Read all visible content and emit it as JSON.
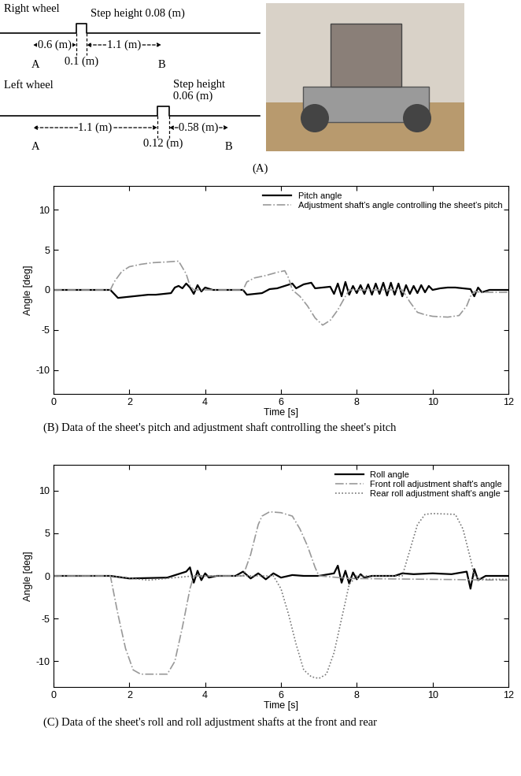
{
  "diagram": {
    "panel_label": "(A)",
    "right_wheel": {
      "label": "Right wheel",
      "step_height": [
        "Step height 0.08 (m)"
      ],
      "before_step": "0.6 (m)",
      "step_width": "0.1 (m)",
      "after_step": "1.1 (m)",
      "start": "A",
      "end": "B"
    },
    "left_wheel": {
      "label": "Left wheel",
      "step_height": [
        "Step height",
        "0.06 (m)"
      ],
      "before_step": "1.1 (m)",
      "step_width": "0.12 (m)",
      "after_step": "0.58 (m)",
      "start": "A",
      "end": "B"
    }
  },
  "chart_data": [
    {
      "type": "line",
      "title": "(B) Data of the sheet's pitch and adjustment shaft controlling the sheet's pitch",
      "x_label": "Time [s]",
      "y_label": "Angle [deg]",
      "xlim": [
        0,
        12
      ],
      "ylim": [
        -13,
        13
      ],
      "xticks": [
        0,
        2,
        4,
        6,
        8,
        10,
        12
      ],
      "yticks": [
        -10,
        -5,
        0,
        5,
        10
      ],
      "legend": "upper right",
      "series": [
        {
          "name": "Pitch angle",
          "color": "#000000",
          "line_style": "solid",
          "x": [
            0,
            1.5,
            1.6,
            1.7,
            1.9,
            2.1,
            2.3,
            2.5,
            2.7,
            2.9,
            3.1,
            3.2,
            3.3,
            3.4,
            3.5,
            3.6,
            3.7,
            3.8,
            3.9,
            4.0,
            4.2,
            5.0,
            5.1,
            5.3,
            5.5,
            5.7,
            5.9,
            6.1,
            6.3,
            6.4,
            6.6,
            6.8,
            6.9,
            7.1,
            7.3,
            7.4,
            7.5,
            7.6,
            7.7,
            7.8,
            7.9,
            8.0,
            8.1,
            8.2,
            8.3,
            8.4,
            8.5,
            8.6,
            8.7,
            8.8,
            8.9,
            9.0,
            9.1,
            9.2,
            9.3,
            9.4,
            9.5,
            9.6,
            9.7,
            9.8,
            9.9,
            10.0,
            10.2,
            10.4,
            10.6,
            10.8,
            11.0,
            11.1,
            11.2,
            11.3,
            11.5,
            12
          ],
          "values": [
            0,
            0,
            -0.5,
            -1.0,
            -0.9,
            -0.8,
            -0.7,
            -0.6,
            -0.6,
            -0.5,
            -0.4,
            0.3,
            0.5,
            0.2,
            0.8,
            0.3,
            -0.5,
            0.6,
            -0.2,
            0.3,
            0,
            0,
            -0.6,
            -0.5,
            -0.4,
            0.1,
            0.2,
            0.5,
            0.8,
            0.2,
            0.7,
            0.9,
            0.2,
            0.3,
            0.4,
            -0.5,
            0.8,
            -0.8,
            1.0,
            -0.6,
            0.5,
            -0.4,
            0.6,
            -0.5,
            0.7,
            -0.6,
            0.8,
            -0.5,
            0.9,
            -0.7,
            0.9,
            -0.6,
            0.8,
            -0.8,
            0.6,
            -0.5,
            0.5,
            -0.4,
            0.6,
            -0.3,
            0.5,
            0,
            0.2,
            0.3,
            0.3,
            0.2,
            0.1,
            -0.8,
            0.3,
            -0.3,
            0,
            0
          ]
        },
        {
          "name": "Adjustment shaft's angle controlling the sheet's pitch",
          "color": "#999999",
          "line_style": "dashdot",
          "x": [
            0,
            1.5,
            1.6,
            1.8,
            2.0,
            2.3,
            2.6,
            3.0,
            3.3,
            3.5,
            3.6,
            3.7,
            4.0,
            5.0,
            5.1,
            5.3,
            5.6,
            5.9,
            6.1,
            6.2,
            6.3,
            6.5,
            6.7,
            6.9,
            7.1,
            7.3,
            7.5,
            7.7,
            7.8,
            8.0,
            9.2,
            9.4,
            9.6,
            9.8,
            10.0,
            10.4,
            10.7,
            10.9,
            11.0,
            11.1,
            11.3,
            12
          ],
          "values": [
            0,
            0,
            1.0,
            2.3,
            2.9,
            3.2,
            3.4,
            3.5,
            3.6,
            2.0,
            0.5,
            0,
            0,
            0,
            1.0,
            1.5,
            1.8,
            2.2,
            2.4,
            1.5,
            0,
            -0.8,
            -2.0,
            -3.5,
            -4.4,
            -3.8,
            -2.5,
            -0.8,
            0,
            0,
            0,
            -1.5,
            -2.8,
            -3.1,
            -3.3,
            -3.4,
            -3.2,
            -2.0,
            -0.8,
            -0.2,
            -0.3,
            -0.3
          ]
        }
      ]
    },
    {
      "type": "line",
      "title": "(C) Data of the sheet's roll and roll adjustment shafts at the front and rear",
      "x_label": "Time [s]",
      "y_label": "Angle [deg]",
      "xlim": [
        0,
        12
      ],
      "ylim": [
        -13,
        13
      ],
      "xticks": [
        0,
        2,
        4,
        6,
        8,
        10,
        12
      ],
      "yticks": [
        -10,
        -5,
        0,
        5,
        10
      ],
      "legend": "upper right",
      "series": [
        {
          "name": "Roll angle",
          "color": "#000000",
          "line_style": "solid",
          "x": [
            0,
            1.5,
            2.0,
            3.0,
            3.5,
            3.6,
            3.7,
            3.8,
            3.9,
            4.0,
            4.1,
            4.3,
            4.8,
            5.0,
            5.2,
            5.4,
            5.6,
            5.8,
            6.0,
            6.3,
            6.6,
            7.0,
            7.4,
            7.5,
            7.6,
            7.7,
            7.8,
            7.9,
            8.0,
            8.1,
            8.2,
            8.4,
            9.0,
            9.2,
            9.5,
            10.0,
            10.5,
            10.9,
            11.0,
            11.1,
            11.2,
            11.4,
            12
          ],
          "values": [
            0,
            0,
            -0.3,
            -0.2,
            0.5,
            1.0,
            -0.8,
            0.6,
            -0.5,
            0.3,
            -0.2,
            0,
            0,
            0.5,
            -0.3,
            0.3,
            -0.4,
            0.3,
            -0.2,
            0.1,
            0,
            0,
            0.3,
            1.2,
            -0.8,
            0.6,
            -0.9,
            0.4,
            -0.4,
            0.2,
            -0.2,
            0,
            0,
            0.3,
            0.2,
            0.3,
            0.2,
            0.5,
            -1.5,
            0.8,
            -0.5,
            0,
            0
          ]
        },
        {
          "name": "Front roll adjustment shaft's angle",
          "color": "#999999",
          "line_style": "dashdot",
          "x": [
            0,
            1.5,
            1.7,
            1.9,
            2.1,
            2.3,
            3.0,
            3.2,
            3.4,
            3.6,
            3.7,
            4.0,
            5.0,
            5.2,
            5.4,
            5.5,
            5.7,
            6.0,
            6.3,
            6.5,
            6.7,
            6.9,
            7.0,
            7.8,
            12
          ],
          "values": [
            0,
            0,
            -4.5,
            -8.5,
            -11.0,
            -11.5,
            -11.5,
            -10.0,
            -6.0,
            -1.5,
            0,
            0,
            0,
            2.5,
            6.0,
            7.0,
            7.5,
            7.4,
            7.0,
            5.5,
            3.5,
            1.0,
            0,
            -0.3,
            -0.5
          ]
        },
        {
          "name": "Rear roll adjustment shaft's angle",
          "color": "#777777",
          "line_style": "dotted",
          "x": [
            0,
            1.5,
            2.5,
            3.7,
            5.0,
            5.8,
            6.0,
            6.2,
            6.4,
            6.6,
            6.8,
            7.0,
            7.2,
            7.4,
            7.6,
            7.8,
            8.0,
            9.2,
            9.4,
            9.6,
            9.8,
            10.0,
            10.6,
            10.8,
            11.0,
            11.1,
            11.3,
            12
          ],
          "values": [
            0,
            0,
            -0.5,
            0,
            0,
            0,
            -1.5,
            -4.5,
            -8.0,
            -11.0,
            -11.8,
            -12.0,
            -11.5,
            -9.0,
            -5.0,
            -1.0,
            0,
            0,
            3.0,
            6.0,
            7.2,
            7.3,
            7.2,
            5.5,
            2.0,
            0,
            -0.4,
            -0.4
          ]
        }
      ]
    }
  ]
}
